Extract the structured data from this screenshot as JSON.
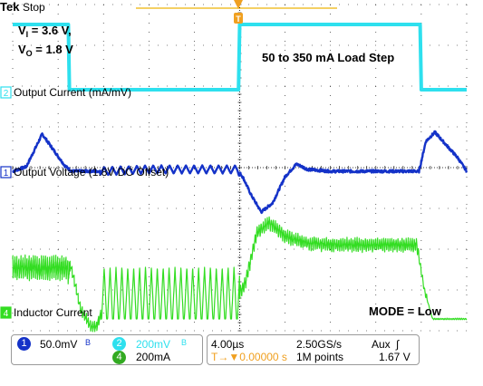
{
  "scope": {
    "brand": "Tek",
    "run_state": "Stop",
    "conditions_line1": "V",
    "conditions_sub1": "I",
    "conditions_val1": " = 3.6 V,",
    "conditions_line2": "V",
    "conditions_sub2": "O",
    "conditions_val2": " = 1.8 V",
    "load_step_label": "50 to 350 mA Load Step",
    "mode_label": "MODE = Low",
    "trigger_marker": "T",
    "colors": {
      "ch1": "#1432c8",
      "ch2": "#2ee0ee",
      "ch4": "#33dd22",
      "grid": "#000000",
      "trigger": "#f0a020"
    }
  },
  "chart_data": {
    "type": "line",
    "x_unit": "µs",
    "time_per_div": "4.00µs",
    "x_divisions": 10,
    "y_divisions": 8,
    "xlim_us": [
      -20,
      20
    ],
    "series": [
      {
        "name": "Output Current (mA/mV)",
        "channel": 2,
        "marker": "2",
        "scale": "200mV",
        "levels_mA": {
          "before_step": 50,
          "after_step": 350
        },
        "step_up_us": 0.0,
        "step_down_us": 16.0,
        "x": [
          -20,
          -15.1,
          -15.0,
          -12,
          -0.1,
          0.0,
          0.3,
          15.9,
          16.0,
          16.3,
          20
        ],
        "y": [
          350,
          350,
          50,
          50,
          50,
          350,
          350,
          350,
          50,
          50,
          50
        ]
      },
      {
        "name": "Output Voltage (1.8V DC Offset)",
        "channel": 1,
        "marker": "1",
        "scale": "50.0mV",
        "x": [
          -20,
          -18.8,
          -17.4,
          -16.2,
          -15.4,
          -14.8,
          -13.8,
          -12,
          -8,
          -4,
          -1,
          -0.2,
          0.3,
          1.0,
          1.9,
          2.9,
          4.0,
          5.0,
          6.0,
          8.0,
          12.0,
          15.8,
          16.4,
          17.2,
          18.2,
          19.2,
          20
        ],
        "y": [
          0,
          5,
          41,
          20,
          6,
          0,
          0,
          0,
          2,
          2,
          2,
          2,
          -7,
          -26,
          -45,
          -35,
          -6,
          8,
          2,
          0,
          0,
          0,
          33,
          43,
          29,
          15,
          0
        ]
      },
      {
        "name": "Inductor Current",
        "channel": 4,
        "marker": "4",
        "scale": "200mA",
        "x": [
          -20,
          -15.2,
          -14.8,
          -14,
          -13.1,
          -12.6,
          -12.0,
          -0.2,
          0.5,
          1.5,
          2.6,
          4.0,
          6.0,
          9.0,
          15.6,
          16.3,
          17.0,
          20
        ],
        "y": [
          400,
          400,
          330,
          100,
          0,
          0,
          120,
          120,
          210,
          500,
          560,
          480,
          440,
          430,
          430,
          160,
          0,
          0
        ]
      }
    ]
  },
  "status_bar": {
    "ch1_badge": "1",
    "ch1_scale": "50.0mV",
    "ch1_bw": "B",
    "ch2_badge": "2",
    "ch2_scale": "200mV",
    "ch2_bw": "B",
    "ch4_badge": "4",
    "ch4_scale": "200mA",
    "timebase": "4.00µs",
    "sample_rate": "2.50GS/s",
    "trigger_source": "Aux",
    "trigger_slope": "∫",
    "trigger_position": "T→▼0.00000 s",
    "record_length": "1M points",
    "trigger_level": "1.67 V"
  }
}
